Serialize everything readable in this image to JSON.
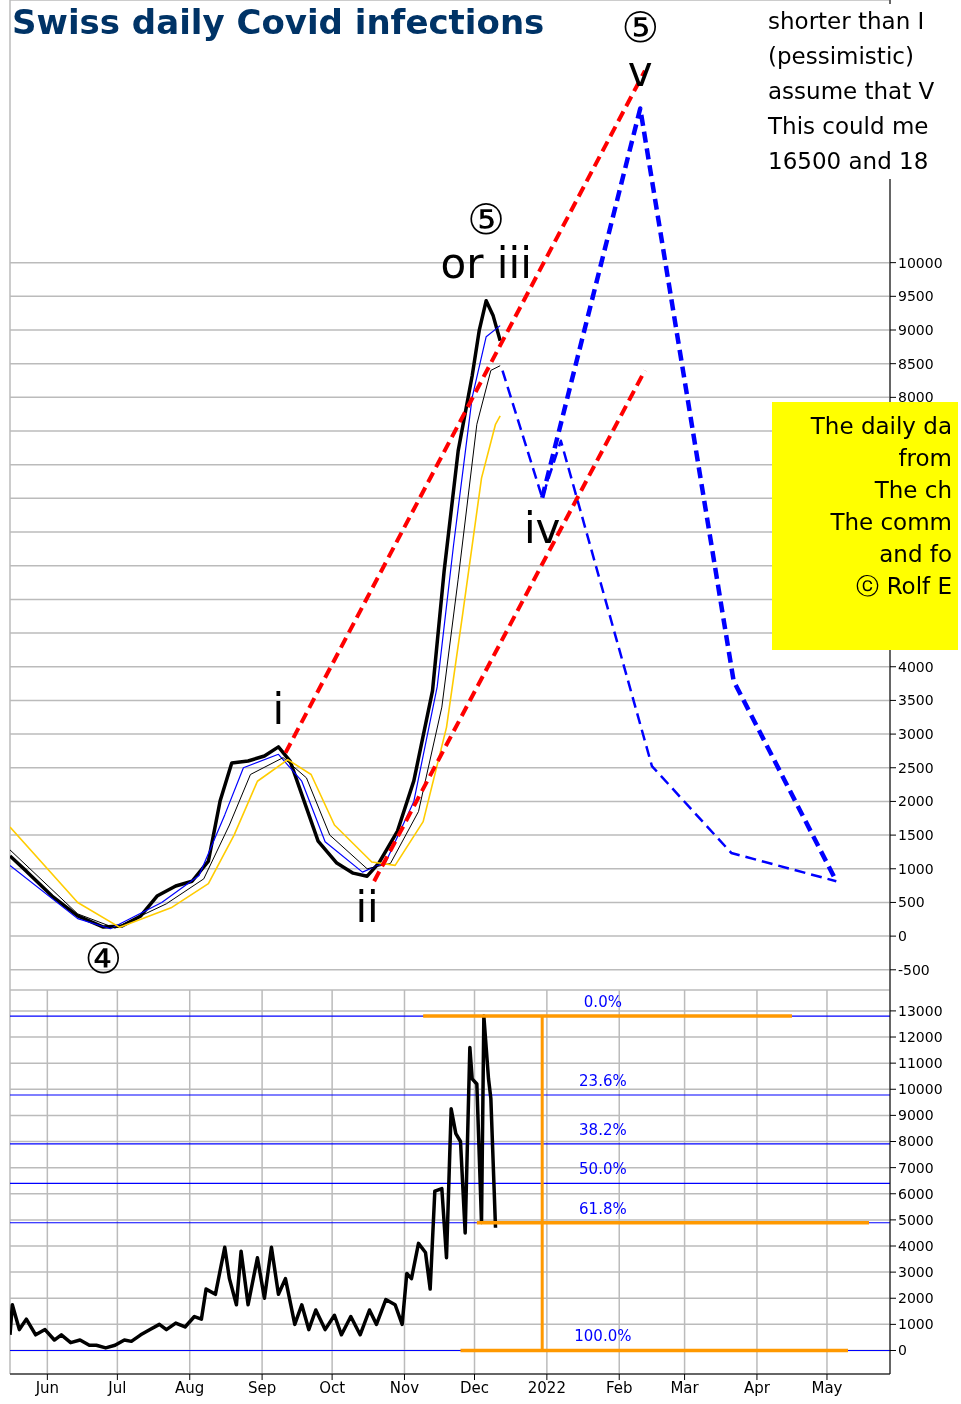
{
  "chart_data": [
    {
      "type": "line",
      "title": "Swiss daily Covid infections",
      "annotations": [
        "shorter than I",
        "(pessimistic)",
        "assume that V",
        "This could me",
        "16500 and 18",
        {
          "text": "or iii",
          "x": "2021-12-06",
          "y": 9435
        },
        {
          "text": "⑤",
          "x": "2021-12-06",
          "y": 9435
        },
        {
          "text": "i",
          "x": "2021-09-08",
          "y": 2810
        },
        {
          "text": "ii",
          "x": "2021-10-16",
          "y": 890
        },
        {
          "text": "iv",
          "x": "2021-12-30",
          "y": 6510
        },
        {
          "text": "④",
          "x": "2021-06-25",
          "y": 135
        },
        {
          "text": "v",
          "x": "2022-02-10",
          "y": 12290
        },
        {
          "text": "⑤",
          "x": "2022-02-10",
          "y": 12290
        }
      ],
      "series": [
        {
          "color": "#000000",
          "x": [
            "2021-05-16",
            "2021-05-23",
            "2021-06-03",
            "2021-06-14",
            "2021-06-25",
            "2021-07-03",
            "2021-07-11",
            "2021-07-18",
            "2021-07-26",
            "2021-08-02",
            "2021-08-09",
            "2021-08-14",
            "2021-08-19",
            "2021-08-26",
            "2021-09-02",
            "2021-09-08",
            "2021-09-13",
            "2021-09-19",
            "2021-09-25",
            "2021-10-03",
            "2021-10-10",
            "2021-10-16",
            "2021-10-21",
            "2021-10-29",
            "2021-11-05",
            "2021-11-13",
            "2021-11-18",
            "2021-11-24",
            "2021-11-30",
            "2021-12-03",
            "2021-12-06",
            "2021-12-09",
            "2021-12-12"
          ],
          "values": [
            1190,
            965,
            595,
            300,
            135,
            150,
            300,
            595,
            745,
            815,
            1115,
            2005,
            2570,
            2600,
            2675,
            2810,
            2600,
            2005,
            1410,
            1085,
            935,
            890,
            1085,
            1560,
            2305,
            3640,
            5425,
            7205,
            8320,
            8990,
            9435,
            9210,
            8840
          ]
        },
        {
          "color": "#0000ff",
          "x": [
            "2021-05-16",
            "2021-06-14",
            "2021-06-28",
            "2021-07-20",
            "2021-08-05",
            "2021-08-16",
            "2021-08-24",
            "2021-09-08",
            "2021-09-18",
            "2021-09-28",
            "2021-10-14",
            "2021-10-24",
            "2021-11-05",
            "2021-11-15",
            "2021-11-22",
            "2021-11-30",
            "2021-12-06",
            "2021-12-12"
          ],
          "values": [
            1050,
            260,
            110,
            500,
            900,
            1800,
            2500,
            2700,
            2300,
            1400,
            950,
            1100,
            2000,
            3700,
            5800,
            8000,
            8900,
            9065
          ]
        },
        {
          "color": "#000000",
          "x": [
            "2021-05-16",
            "2021-06-14",
            "2021-06-30",
            "2021-07-22",
            "2021-08-07",
            "2021-08-18",
            "2021-08-27",
            "2021-09-10",
            "2021-09-20",
            "2021-09-30",
            "2021-10-16",
            "2021-10-26",
            "2021-11-07",
            "2021-11-17",
            "2021-11-24",
            "2021-12-02",
            "2021-12-08",
            "2021-12-12"
          ],
          "values": [
            1280,
            330,
            120,
            480,
            850,
            1650,
            2400,
            2650,
            2350,
            1500,
            1000,
            1080,
            1850,
            3400,
            5300,
            7600,
            8400,
            8470
          ]
        },
        {
          "color": "#ffcc00",
          "x": [
            "2021-05-16",
            "2021-06-14",
            "2021-07-02",
            "2021-07-24",
            "2021-08-09",
            "2021-08-20",
            "2021-08-30",
            "2021-09-12",
            "2021-09-22",
            "2021-10-02",
            "2021-10-18",
            "2021-10-28",
            "2021-11-09",
            "2021-11-19",
            "2021-11-26",
            "2021-12-04",
            "2021-12-10",
            "2021-12-12"
          ],
          "values": [
            1620,
            500,
            130,
            420,
            780,
            1500,
            2300,
            2620,
            2400,
            1650,
            1100,
            1050,
            1700,
            3100,
            4800,
            6800,
            7600,
            7725
          ]
        },
        {
          "color": "#ff0000",
          "line_style": "dashed",
          "x": [
            "2021-09-11",
            "2022-02-12"
          ],
          "values": [
            2720,
            12850
          ]
        },
        {
          "color": "#ff0000",
          "line_style": "dashed",
          "x": [
            "2021-10-19",
            "2022-02-12"
          ],
          "values": [
            815,
            8400
          ]
        },
        {
          "color": "#0000ff",
          "line_style": "dashed",
          "x": [
            "2021-12-30",
            "2022-02-10",
            "2022-03-22",
            "2022-05-05"
          ],
          "values": [
            6510,
            12290,
            3790,
            815
          ]
        },
        {
          "color": "#0000ff",
          "line_style": "dashed",
          "x": [
            "2021-12-13",
            "2021-12-30",
            "2022-01-07",
            "2022-02-15",
            "2022-03-21",
            "2022-05-05"
          ],
          "values": [
            8395,
            6510,
            7355,
            2525,
            1235,
            815
          ]
        }
      ],
      "xlim": [
        "2021-05-16",
        "2022-05-28"
      ],
      "xticks": [
        {
          "value": "2021-06-01",
          "label": null
        },
        {
          "value": "2021-07-01",
          "label": null
        },
        {
          "value": "2021-08-01",
          "label": null
        },
        {
          "value": "2021-09-01",
          "label": null
        },
        {
          "value": "2021-10-01",
          "label": null
        },
        {
          "value": "2021-11-01",
          "label": null
        },
        {
          "value": "2021-12-01",
          "label": null
        },
        {
          "value": "2022-01-01",
          "label": null
        },
        {
          "value": "2022-02-01",
          "label": null
        },
        {
          "value": "2022-03-01",
          "label": null
        },
        {
          "value": "2022-04-01",
          "label": null
        },
        {
          "value": "2022-05-01",
          "label": null
        }
      ],
      "ylim": [
        -800,
        13900
      ],
      "yticks": [
        -500,
        0,
        500,
        1000,
        1500,
        2000,
        2500,
        3000,
        3500,
        4000,
        {
          "value": 4500,
          "label": null
        },
        {
          "value": 5000,
          "label": null
        },
        {
          "value": 5500,
          "label": null
        },
        {
          "value": 6000,
          "label": null
        },
        {
          "value": 6500,
          "label": null
        },
        {
          "value": 7000,
          "label": null
        },
        {
          "value": 7500,
          "label": null
        },
        8000,
        8500,
        9000,
        9500,
        10000
      ],
      "grid": true,
      "tick_labels": "y"
    },
    {
      "type": "line",
      "series": [
        {
          "color": "#000000",
          "x": [
            "2021-05-16",
            "2021-05-17",
            "2021-05-20",
            "2021-05-23",
            "2021-05-27",
            "2021-05-31",
            "2021-06-04",
            "2021-06-07",
            "2021-06-11",
            "2021-06-15",
            "2021-06-19",
            "2021-06-22",
            "2021-06-26",
            "2021-06-30",
            "2021-07-04",
            "2021-07-07",
            "2021-07-11",
            "2021-07-15",
            "2021-07-19",
            "2021-07-22",
            "2021-07-26",
            "2021-07-30",
            "2021-08-03",
            "2021-08-06",
            "2021-08-08",
            "2021-08-12",
            "2021-08-16",
            "2021-08-18",
            "2021-08-21",
            "2021-08-23",
            "2021-08-26",
            "2021-08-30",
            "2021-09-02",
            "2021-09-05",
            "2021-09-08",
            "2021-09-11",
            "2021-09-15",
            "2021-09-18",
            "2021-09-21",
            "2021-09-24",
            "2021-09-28",
            "2021-10-02",
            "2021-10-05",
            "2021-10-09",
            "2021-10-13",
            "2021-10-17",
            "2021-10-20",
            "2021-10-24",
            "2021-10-28",
            "2021-10-31",
            "2021-11-02",
            "2021-11-04",
            "2021-11-07",
            "2021-11-10",
            "2021-11-12",
            "2021-11-14",
            "2021-11-17",
            "2021-11-19",
            "2021-11-21",
            "2021-11-23",
            "2021-11-25",
            "2021-11-27",
            "2021-11-29",
            "2021-11-30",
            "2021-12-02",
            "2021-12-04",
            "2021-12-05",
            "2021-12-07",
            "2021-12-08",
            "2021-12-10"
          ],
          "values": [
            600,
            1750,
            800,
            1200,
            600,
            800,
            400,
            600,
            300,
            400,
            200,
            200,
            100,
            200,
            400,
            350,
            600,
            800,
            1000,
            800,
            1050,
            900,
            1300,
            1200,
            2350,
            2150,
            3950,
            2750,
            1750,
            3800,
            1750,
            3550,
            2000,
            3950,
            2150,
            2750,
            1000,
            1750,
            800,
            1550,
            800,
            1350,
            600,
            1300,
            600,
            1550,
            1000,
            1950,
            1750,
            1000,
            2950,
            2750,
            4100,
            3750,
            2350,
            6100,
            6200,
            3550,
            9250,
            8300,
            8000,
            4500,
            11600,
            10400,
            10200,
            4900,
            12800,
            10400,
            9650,
            4700
          ]
        },
        {
          "color": "#ff9900",
          "x": [
            "2021-11-09",
            "2022-04-16"
          ],
          "values": [
            12800,
            12800
          ]
        },
        {
          "color": "#ff9900",
          "x": [
            "2021-12-02",
            "2022-05-19"
          ],
          "values": [
            4890,
            4890
          ]
        },
        {
          "color": "#ff9900",
          "x": [
            "2021-11-25",
            "2022-05-10"
          ],
          "values": [
            0,
            0
          ]
        },
        {
          "color": "#ff9900",
          "x": [
            "2021-12-30",
            "2021-12-30"
          ],
          "values": [
            12800,
            0
          ]
        }
      ],
      "ref_lines": [
        {
          "axis": "y",
          "value": 12800,
          "color": "#0000ff"
        },
        {
          "axis": "y",
          "value": 9780,
          "color": "#0000ff"
        },
        {
          "axis": "y",
          "value": 7910,
          "color": "#0000ff"
        },
        {
          "axis": "y",
          "value": 6400,
          "color": "#0000ff"
        },
        {
          "axis": "y",
          "value": 4890,
          "color": "#0000ff"
        },
        {
          "axis": "y",
          "value": 0,
          "color": "#0000ff"
        }
      ],
      "annotations": [
        {
          "text": "0.0%",
          "x": "2022-01-25",
          "y": 12800
        },
        {
          "text": "23.6%",
          "x": "2022-01-25",
          "y": 9780
        },
        {
          "text": "38.2%",
          "x": "2022-01-25",
          "y": 7910
        },
        {
          "text": "50.0%",
          "x": "2022-01-25",
          "y": 6400
        },
        {
          "text": "61.8%",
          "x": "2022-01-25",
          "y": 4890
        },
        {
          "text": "100.0%",
          "x": "2022-01-25",
          "y": 0
        }
      ],
      "xlim": [
        "2021-05-16",
        "2022-05-28"
      ],
      "xticks": [
        {
          "value": "2021-06-01",
          "label": "Jun"
        },
        {
          "value": "2021-07-01",
          "label": "Jul"
        },
        {
          "value": "2021-08-01",
          "label": "Aug"
        },
        {
          "value": "2021-09-01",
          "label": "Sep"
        },
        {
          "value": "2021-10-01",
          "label": "Oct"
        },
        {
          "value": "2021-11-01",
          "label": "Nov"
        },
        {
          "value": "2021-12-01",
          "label": "Dec"
        },
        {
          "value": "2022-01-01",
          "label": "2022"
        },
        {
          "value": "2022-02-01",
          "label": "Feb"
        },
        {
          "value": "2022-03-01",
          "label": "Mar"
        },
        {
          "value": "2022-04-01",
          "label": "Apr"
        },
        {
          "value": "2022-05-01",
          "label": "May"
        }
      ],
      "ylim": [
        -900,
        13800
      ],
      "yticks": [
        0,
        1000,
        2000,
        3000,
        4000,
        5000,
        6000,
        7000,
        8000,
        9000,
        10000,
        11000,
        12000,
        13000
      ],
      "grid": true
    },
    {
      "type": "other",
      "color": "#ffff00",
      "annotations": [
        "The daily da",
        "from",
        "The ch",
        "The comm",
        "and fo",
        "ⓒ Rolf E"
      ]
    }
  ]
}
